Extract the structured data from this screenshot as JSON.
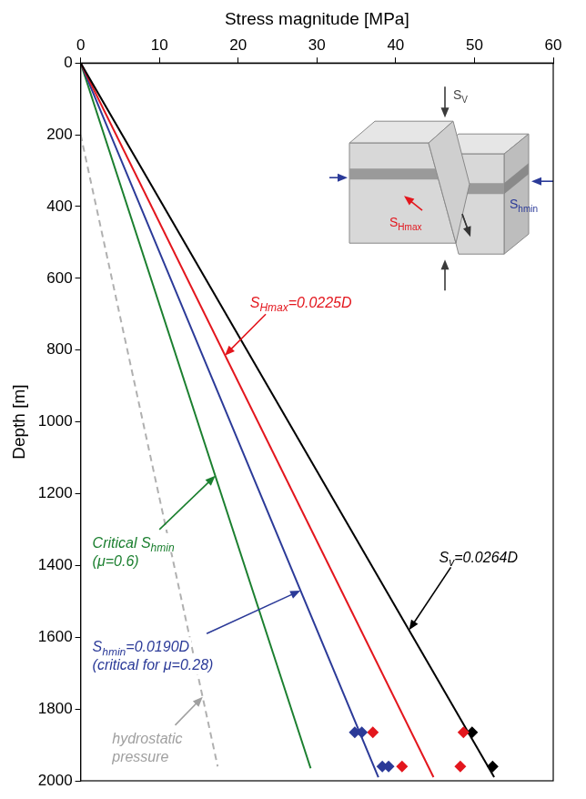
{
  "chart_data": {
    "type": "line",
    "x_label": "Stress magnitude [MPa]",
    "y_label": "Depth [m]",
    "xlim": [
      0,
      60
    ],
    "xticks": [
      0,
      10,
      20,
      30,
      40,
      50,
      60
    ],
    "ylim": [
      0,
      2000
    ],
    "yticks": [
      0,
      200,
      400,
      600,
      800,
      1000,
      1200,
      1400,
      1600,
      1800,
      2000
    ],
    "grid": false,
    "legend": false,
    "series": [
      {
        "name": "Sv=0.0264D",
        "type": "line",
        "line_style": "solid",
        "color": "#000000",
        "x": [
          0,
          52.5
        ],
        "values": [
          0,
          1990
        ]
      },
      {
        "name": "SHmax=0.0225D",
        "type": "line",
        "line_style": "solid",
        "color": "#e3161d",
        "x": [
          0,
          44.8
        ],
        "values": [
          0,
          1990
        ]
      },
      {
        "name": "Shmin=0.0190D",
        "type": "line",
        "line_style": "solid",
        "color": "#2b3a98",
        "x": [
          0,
          37.8
        ],
        "values": [
          0,
          1990
        ]
      },
      {
        "name": "Critical Shmin",
        "type": "line",
        "line_style": "solid",
        "color": "#1b7f2f",
        "x": [
          0,
          29.2
        ],
        "values": [
          0,
          1965
        ]
      },
      {
        "name": "hydrostatic pressure",
        "type": "line",
        "line_style": "dashed",
        "color": "#b0b0b0",
        "x": [
          0,
          17.4
        ],
        "values": [
          200,
          1960
        ]
      },
      {
        "type": "scatter",
        "marker": "diamond",
        "color": "#2b3a98",
        "x": [
          34.8,
          35.7,
          38.3,
          39.1
        ],
        "values": [
          1865,
          1865,
          1960,
          1960
        ]
      },
      {
        "type": "scatter",
        "marker": "diamond",
        "color": "#e3161d",
        "x": [
          37.1,
          48.6,
          40.8,
          48.2
        ],
        "values": [
          1865,
          1865,
          1960,
          1960
        ]
      },
      {
        "type": "scatter",
        "marker": "diamond",
        "color": "#000000",
        "x": [
          49.7,
          52.3
        ],
        "values": [
          1865,
          1960
        ]
      }
    ],
    "annotations": [
      {
        "color": "#e3161d",
        "lines": [
          [
            {
              "text": "S"
            },
            {
              "sub": "Hmax"
            },
            {
              "text": "=0.0225D"
            }
          ]
        ]
      },
      {
        "color": "#000000",
        "lines": [
          [
            {
              "text": "S"
            },
            {
              "sub": "v"
            },
            {
              "text": "=0.0264D"
            }
          ]
        ]
      },
      {
        "color": "#2b3a98",
        "lines": [
          [
            {
              "text": "S"
            },
            {
              "sub": "hmin"
            },
            {
              "text": "=0.0190D"
            }
          ],
          [
            {
              "text": "(critical for μ=0.28)"
            }
          ]
        ]
      },
      {
        "color": "#1b7f2f",
        "lines": [
          [
            {
              "text": "Critical S"
            },
            {
              "sub": "hmin"
            }
          ],
          [
            {
              "text": "(μ=0.6)"
            }
          ]
        ]
      },
      {
        "color": "#a0a0a0",
        "lines": [
          [
            {
              "text": "hydrostatic"
            }
          ],
          [
            {
              "text": "pressure"
            }
          ]
        ]
      }
    ],
    "inset_labels": [
      {
        "color": "#444444",
        "runs": [
          {
            "text": "S"
          },
          {
            "sub": "V"
          }
        ]
      },
      {
        "color": "#2b3a98",
        "runs": [
          {
            "text": "S"
          },
          {
            "sub": "hmin"
          }
        ]
      },
      {
        "color": "#e3161d",
        "runs": [
          {
            "text": "S"
          },
          {
            "sub": "Hmax"
          }
        ]
      }
    ]
  }
}
